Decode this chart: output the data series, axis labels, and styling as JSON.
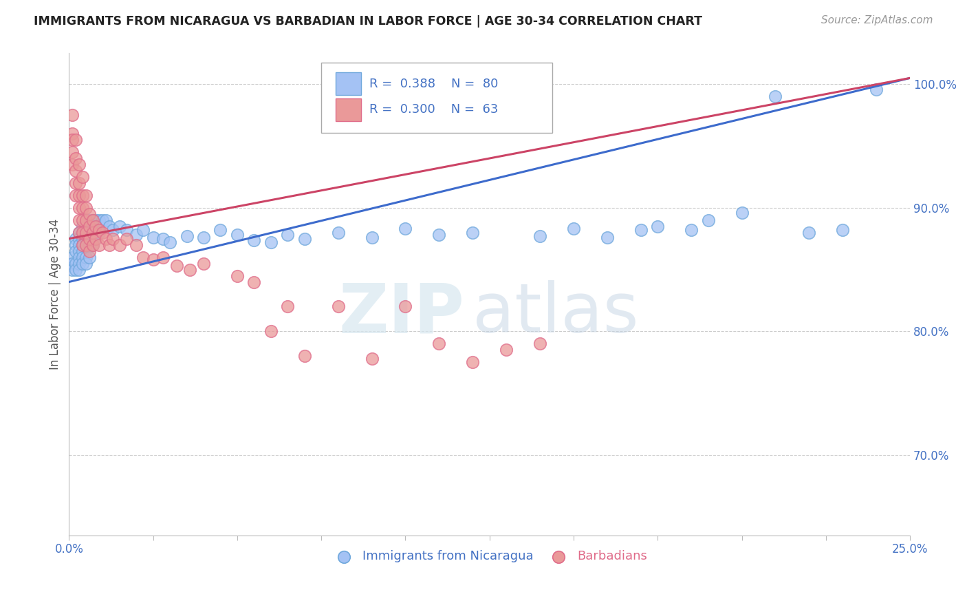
{
  "title": "IMMIGRANTS FROM NICARAGUA VS BARBADIAN IN LABOR FORCE | AGE 30-34 CORRELATION CHART",
  "source_text": "Source: ZipAtlas.com",
  "ylabel": "In Labor Force | Age 30-34",
  "xlim": [
    0.0,
    0.25
  ],
  "ylim": [
    0.635,
    1.025
  ],
  "yticks_right": [
    0.7,
    0.8,
    0.9,
    1.0
  ],
  "ytick_right_labels": [
    "70.0%",
    "80.0%",
    "90.0%",
    "100.0%"
  ],
  "blue_color": "#a4c2f4",
  "blue_edge_color": "#6fa8dc",
  "pink_color": "#ea9999",
  "pink_edge_color": "#e06c8a",
  "blue_line_color": "#3d6bcc",
  "pink_line_color": "#cc4466",
  "blue_R": 0.388,
  "blue_N": 80,
  "pink_R": 0.3,
  "pink_N": 63,
  "legend_label_blue": "Immigrants from Nicaragua",
  "legend_label_pink": "Barbadians",
  "watermark_zip": "ZIP",
  "watermark_atlas": "atlas",
  "watermark_color": "#ccdcec",
  "title_color": "#222222",
  "axis_label_color": "#555555",
  "tick_color": "#4472c4",
  "grid_color": "#cccccc",
  "blue_trend_x0": 0.0,
  "blue_trend_y0": 0.84,
  "blue_trend_x1": 0.25,
  "blue_trend_y1": 1.005,
  "pink_trend_x0": 0.0,
  "pink_trend_y0": 0.875,
  "pink_trend_x1": 0.25,
  "pink_trend_y1": 1.005,
  "blue_scatter_x": [
    0.001,
    0.001,
    0.001,
    0.001,
    0.002,
    0.002,
    0.002,
    0.002,
    0.002,
    0.003,
    0.003,
    0.003,
    0.003,
    0.003,
    0.003,
    0.003,
    0.004,
    0.004,
    0.004,
    0.004,
    0.004,
    0.004,
    0.004,
    0.005,
    0.005,
    0.005,
    0.005,
    0.005,
    0.005,
    0.005,
    0.006,
    0.006,
    0.006,
    0.006,
    0.006,
    0.007,
    0.007,
    0.007,
    0.007,
    0.008,
    0.008,
    0.008,
    0.009,
    0.009,
    0.01,
    0.011,
    0.012,
    0.013,
    0.015,
    0.017,
    0.02,
    0.022,
    0.025,
    0.028,
    0.03,
    0.035,
    0.04,
    0.045,
    0.05,
    0.055,
    0.06,
    0.065,
    0.07,
    0.08,
    0.09,
    0.1,
    0.11,
    0.12,
    0.14,
    0.15,
    0.16,
    0.17,
    0.175,
    0.185,
    0.19,
    0.2,
    0.21,
    0.22,
    0.23,
    0.24
  ],
  "blue_scatter_y": [
    0.855,
    0.86,
    0.855,
    0.85,
    0.875,
    0.87,
    0.865,
    0.855,
    0.85,
    0.88,
    0.875,
    0.87,
    0.865,
    0.86,
    0.855,
    0.85,
    0.885,
    0.88,
    0.875,
    0.87,
    0.865,
    0.86,
    0.855,
    0.89,
    0.885,
    0.88,
    0.875,
    0.87,
    0.86,
    0.855,
    0.89,
    0.885,
    0.88,
    0.87,
    0.86,
    0.89,
    0.885,
    0.88,
    0.87,
    0.89,
    0.885,
    0.875,
    0.89,
    0.88,
    0.89,
    0.89,
    0.885,
    0.882,
    0.885,
    0.882,
    0.878,
    0.882,
    0.876,
    0.875,
    0.872,
    0.877,
    0.876,
    0.882,
    0.878,
    0.874,
    0.872,
    0.878,
    0.875,
    0.88,
    0.876,
    0.883,
    0.878,
    0.88,
    0.877,
    0.883,
    0.876,
    0.882,
    0.885,
    0.882,
    0.89,
    0.896,
    0.99,
    0.88,
    0.882,
    0.996
  ],
  "pink_scatter_x": [
    0.001,
    0.001,
    0.001,
    0.001,
    0.001,
    0.002,
    0.002,
    0.002,
    0.002,
    0.002,
    0.003,
    0.003,
    0.003,
    0.003,
    0.003,
    0.003,
    0.004,
    0.004,
    0.004,
    0.004,
    0.004,
    0.004,
    0.005,
    0.005,
    0.005,
    0.005,
    0.005,
    0.006,
    0.006,
    0.006,
    0.006,
    0.007,
    0.007,
    0.007,
    0.008,
    0.008,
    0.009,
    0.009,
    0.01,
    0.011,
    0.012,
    0.013,
    0.015,
    0.017,
    0.02,
    0.022,
    0.025,
    0.028,
    0.032,
    0.036,
    0.04,
    0.05,
    0.055,
    0.06,
    0.065,
    0.07,
    0.08,
    0.09,
    0.1,
    0.11,
    0.12,
    0.13,
    0.14
  ],
  "pink_scatter_y": [
    0.96,
    0.975,
    0.955,
    0.945,
    0.935,
    0.955,
    0.94,
    0.93,
    0.92,
    0.91,
    0.935,
    0.92,
    0.91,
    0.9,
    0.89,
    0.88,
    0.925,
    0.91,
    0.9,
    0.89,
    0.88,
    0.87,
    0.91,
    0.9,
    0.89,
    0.88,
    0.87,
    0.895,
    0.885,
    0.875,
    0.865,
    0.89,
    0.88,
    0.87,
    0.885,
    0.875,
    0.882,
    0.87,
    0.88,
    0.875,
    0.87,
    0.875,
    0.87,
    0.875,
    0.87,
    0.86,
    0.858,
    0.86,
    0.853,
    0.85,
    0.855,
    0.845,
    0.84,
    0.8,
    0.82,
    0.78,
    0.82,
    0.778,
    0.82,
    0.79,
    0.775,
    0.785,
    0.79
  ]
}
